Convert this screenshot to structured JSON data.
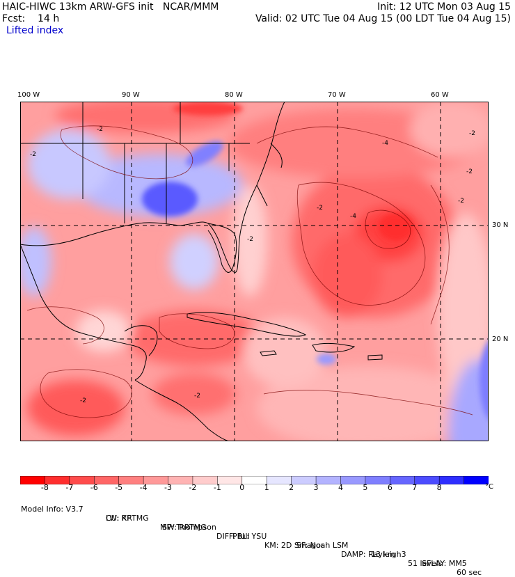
{
  "header": {
    "left_line1": "HAIC-HIWC 13km ARW-GFS init   NCAR/MMM",
    "left_line2": "Fcst:    14 h",
    "field_name": "Lifted index",
    "right_line1": "Init: 12 UTC Mon 03 Aug 15",
    "right_line2": "Valid: 02 UTC Tue 04 Aug 15 (00 LDT Tue 04 Aug 15)"
  },
  "map": {
    "lon_labels": [
      "100 W",
      "90 W",
      "80 W",
      "70 W",
      "60 W"
    ],
    "lat_labels": [
      "30 N",
      "20 N"
    ],
    "contour_labels": [
      "-2",
      "-4"
    ]
  },
  "colorbar": {
    "colors": [
      "#ff0000",
      "#ff2e2e",
      "#ff4c4c",
      "#ff6666",
      "#ff8080",
      "#ff9999",
      "#ffb3b3",
      "#ffcccc",
      "#ffe6e6",
      "#ffffff",
      "#e6e6ff",
      "#ccccff",
      "#b3b3ff",
      "#9999ff",
      "#7f7fff",
      "#6666ff",
      "#4c4cff",
      "#2e2eff",
      "#0000ff"
    ],
    "labels": [
      "-8",
      "-7",
      "-6",
      "-5",
      "-4",
      "-3",
      "-2",
      "-1",
      "0",
      "1",
      "2",
      "3",
      "4",
      "5",
      "6",
      "7",
      "8"
    ],
    "unit": "°C"
  },
  "model_info": {
    "line1": [
      "Model Info: V3.7",
      "CU: KF",
      "MP: Thompson",
      "PBL: YSU",
      "SF: Noah LSM",
      "13 km",
      "51 levels",
      "60 sec"
    ],
    "line2": [
      "LW: RRTMG",
      "SW: RRTMG",
      "DIFF: full",
      "KM: 2D Smagor",
      "DAMP: Rayleigh3",
      "SFLAY: MM5"
    ]
  }
}
